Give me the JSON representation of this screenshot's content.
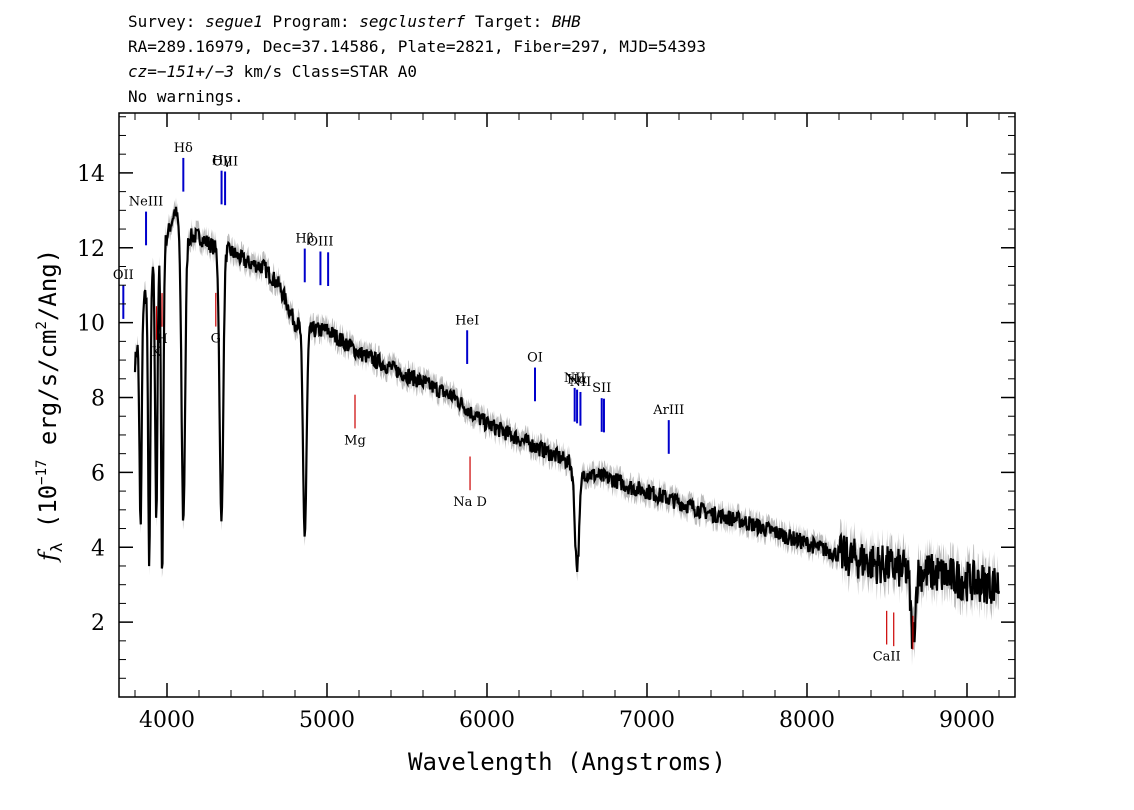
{
  "header": {
    "line1": {
      "survey_label": "Survey:",
      "survey": "segue1",
      "program_label": "Program:",
      "program": "segclusterf",
      "target_label": "Target:",
      "target": "BHB"
    },
    "line2": "RA=289.16979, Dec=37.14586, Plate=2821, Fiber=297, MJD=54393",
    "line3": {
      "cz": "cz=−151+/−3",
      "rest": "km/s Class=STAR A0"
    },
    "line4": "No warnings."
  },
  "chart_data": {
    "type": "line",
    "xlabel": "Wavelength (Angstroms)",
    "ylabel": "f_λ (10^-17 erg/s/cm^2/Ang)",
    "xlim": [
      3700,
      9300
    ],
    "ylim": [
      0,
      15.6
    ],
    "x_ticks": [
      4000,
      5000,
      6000,
      7000,
      8000,
      9000
    ],
    "y_ticks": [
      2,
      4,
      6,
      8,
      10,
      12,
      14
    ],
    "series": [
      {
        "color": "#000000",
        "continuum": [
          [
            3800,
            8.9
          ],
          [
            3850,
            10.6
          ],
          [
            3900,
            11.3
          ],
          [
            4000,
            12.3
          ],
          [
            4050,
            13.0
          ],
          [
            4100,
            12.3
          ],
          [
            4200,
            12.3
          ],
          [
            4300,
            12.0
          ],
          [
            4400,
            11.9
          ],
          [
            4500,
            11.6
          ],
          [
            4600,
            11.5
          ],
          [
            4700,
            11.0
          ],
          [
            4800,
            10.0
          ],
          [
            4900,
            9.8
          ],
          [
            5000,
            9.8
          ],
          [
            5100,
            9.5
          ],
          [
            5200,
            9.2
          ],
          [
            5300,
            9.0
          ],
          [
            5400,
            8.8
          ],
          [
            5500,
            8.6
          ],
          [
            5600,
            8.4
          ],
          [
            5700,
            8.2
          ],
          [
            5800,
            8.0
          ],
          [
            5900,
            7.6
          ],
          [
            6000,
            7.3
          ],
          [
            6100,
            7.1
          ],
          [
            6200,
            6.9
          ],
          [
            6300,
            6.7
          ],
          [
            6400,
            6.5
          ],
          [
            6500,
            6.3
          ],
          [
            6600,
            6.0
          ],
          [
            6700,
            5.9
          ],
          [
            6800,
            5.8
          ],
          [
            6900,
            5.6
          ],
          [
            7000,
            5.5
          ],
          [
            7200,
            5.2
          ],
          [
            7400,
            4.9
          ],
          [
            7600,
            4.7
          ],
          [
            7800,
            4.4
          ],
          [
            8000,
            4.1
          ],
          [
            8200,
            3.8
          ],
          [
            8400,
            3.6
          ],
          [
            8600,
            3.4
          ],
          [
            8800,
            3.3
          ],
          [
            9000,
            3.1
          ],
          [
            9200,
            3.0
          ]
        ],
        "absorption": [
          [
            3835,
            4.5
          ],
          [
            3889,
            3.6
          ],
          [
            3933,
            4.8
          ],
          [
            3970,
            3.3
          ],
          [
            4102,
            4.7
          ],
          [
            4340,
            4.6
          ],
          [
            4861,
            4.3
          ],
          [
            6563,
            3.5
          ],
          [
            8662,
            1.6
          ]
        ]
      }
    ],
    "lines": [
      {
        "name": "OII",
        "x": 3727,
        "kind": "emission",
        "color": "#0000cc"
      },
      {
        "name": "NeIII",
        "x": 3869,
        "kind": "emission",
        "color": "#0000cc"
      },
      {
        "name": "Hδ",
        "x": 4102,
        "kind": "emission",
        "color": "#0000cc"
      },
      {
        "name": "Hγ",
        "x": 4341,
        "kind": "emission",
        "color": "#0000cc"
      },
      {
        "name": "OIII",
        "x": 4363,
        "kind": "emission",
        "color": "#0000cc"
      },
      {
        "name": "Hβ",
        "x": 4861,
        "kind": "emission",
        "color": "#0000cc"
      },
      {
        "name": "OIII",
        "x": 4959,
        "kind": "emission",
        "color": "#0000cc"
      },
      {
        "name": "",
        "x": 5007,
        "kind": "emission",
        "color": "#0000cc"
      },
      {
        "name": "HeI",
        "x": 5876,
        "kind": "emission",
        "color": "#0000cc"
      },
      {
        "name": "OI",
        "x": 6300,
        "kind": "emission",
        "color": "#0000cc"
      },
      {
        "name": "NII",
        "x": 6548,
        "kind": "emission",
        "color": "#0000cc"
      },
      {
        "name": "Hα",
        "x": 6563,
        "kind": "emission",
        "color": "#0000cc"
      },
      {
        "name": "NII",
        "x": 6584,
        "kind": "emission",
        "color": "#0000cc"
      },
      {
        "name": "SII",
        "x": 6717,
        "kind": "emission",
        "color": "#0000cc"
      },
      {
        "name": "",
        "x": 6731,
        "kind": "emission",
        "color": "#0000cc"
      },
      {
        "name": "ArIII",
        "x": 7136,
        "kind": "emission",
        "color": "#0000cc"
      },
      {
        "name": "K",
        "x": 3934,
        "kind": "absorption",
        "color": "#cc0000"
      },
      {
        "name": "H",
        "x": 3969,
        "kind": "absorption",
        "color": "#cc0000"
      },
      {
        "name": "G",
        "x": 4305,
        "kind": "absorption",
        "color": "#cc0000"
      },
      {
        "name": "Mg",
        "x": 5175,
        "kind": "absorption",
        "color": "#cc0000"
      },
      {
        "name": "Na D",
        "x": 5894,
        "kind": "absorption",
        "color": "#cc0000"
      },
      {
        "name": "CaII",
        "x": 8498,
        "kind": "absorption",
        "color": "#cc0000"
      },
      {
        "name": "",
        "x": 8542,
        "kind": "absorption",
        "color": "#cc0000"
      },
      {
        "name": "",
        "x": 8662,
        "kind": "absorption",
        "color": "#cc0000"
      }
    ],
    "error_band_color": "#bbbbbb"
  }
}
